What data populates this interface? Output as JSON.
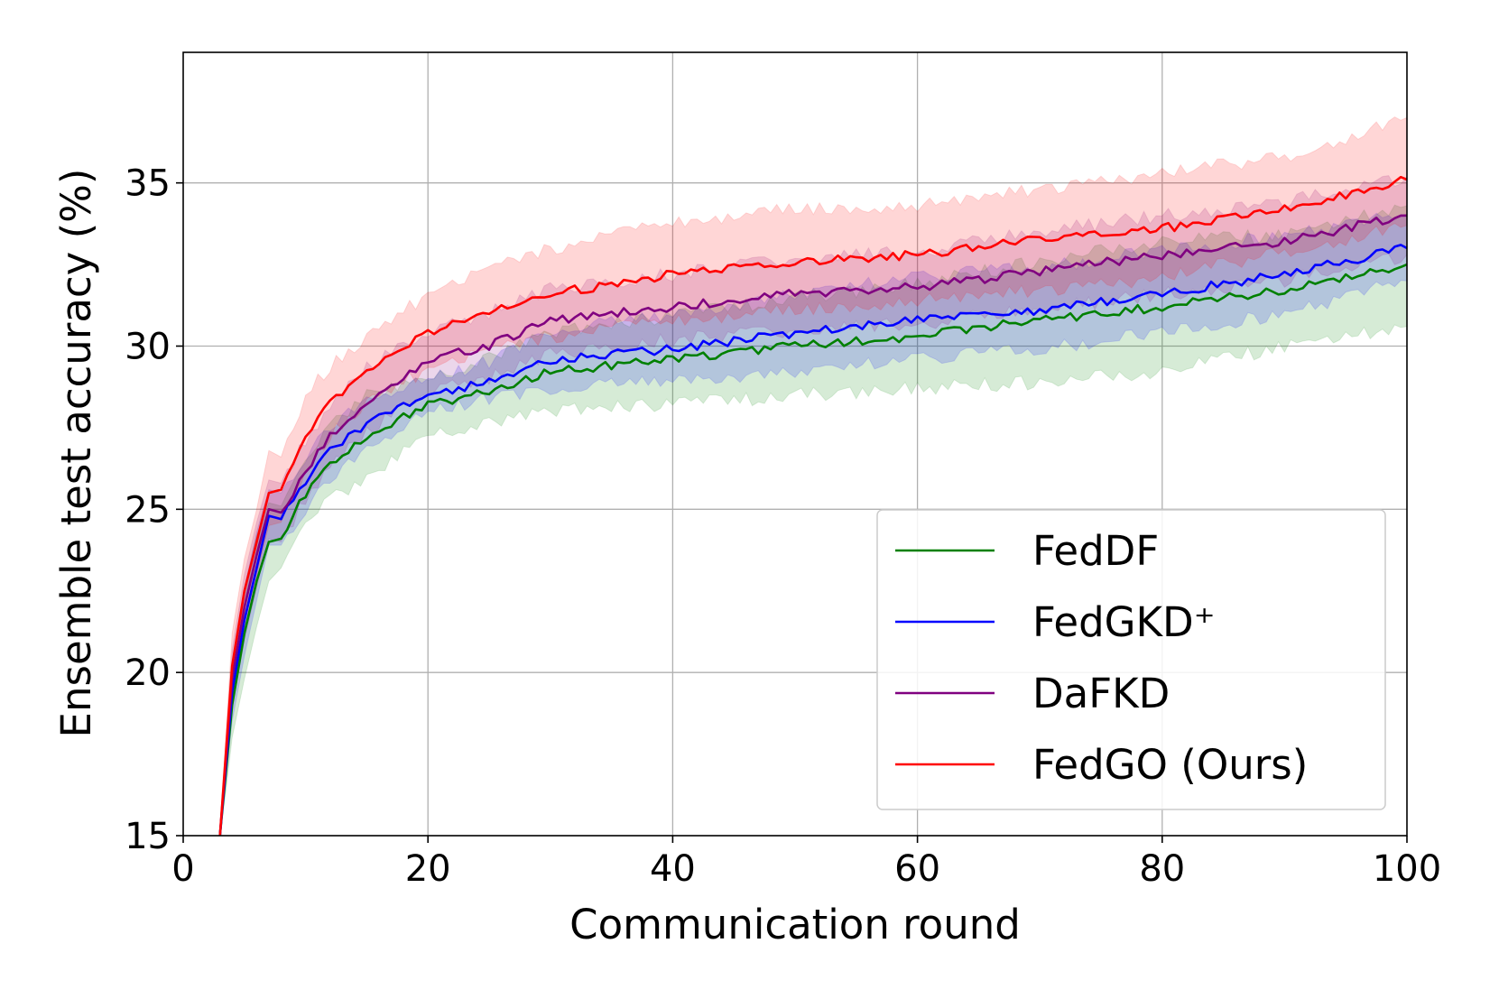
{
  "chart_data": {
    "type": "line",
    "title": "",
    "xlabel": "Communication round",
    "ylabel": "Ensemble test accuracy (%)",
    "xlim": [
      0,
      100
    ],
    "ylim": [
      15,
      39
    ],
    "xticks": [
      0,
      20,
      40,
      60,
      80,
      100
    ],
    "yticks": [
      15,
      20,
      25,
      30,
      35
    ],
    "grid": true,
    "legend_position": "bottom-right",
    "series": [
      {
        "name": "FedDF",
        "color": "#008000",
        "x": [
          3,
          4,
          5,
          6,
          7,
          8,
          10,
          12,
          15,
          20,
          25,
          30,
          40,
          50,
          60,
          70,
          80,
          90,
          100
        ],
        "values": [
          15.0,
          19.0,
          21.2,
          22.8,
          24.0,
          24.1,
          25.5,
          26.4,
          27.2,
          28.2,
          28.6,
          29.2,
          29.6,
          30.0,
          30.3,
          30.8,
          31.2,
          31.7,
          32.5
        ],
        "band_lower": [
          14.8,
          18.0,
          19.8,
          21.4,
          22.8,
          23.2,
          24.6,
          25.3,
          25.9,
          27.4,
          27.6,
          28.0,
          28.2,
          28.5,
          28.7,
          28.9,
          29.2,
          30.0,
          30.6
        ],
        "band_upper": [
          15.2,
          20.0,
          22.5,
          24.2,
          25.2,
          25.1,
          26.5,
          27.5,
          28.5,
          29.1,
          29.6,
          30.4,
          30.9,
          31.5,
          31.9,
          32.6,
          33.2,
          33.4,
          34.3
        ]
      },
      {
        "name": "FedGKD⁺",
        "color": "#0000ff",
        "x": [
          3,
          4,
          5,
          6,
          7,
          8,
          10,
          12,
          15,
          20,
          25,
          30,
          40,
          50,
          60,
          70,
          80,
          90,
          100
        ],
        "values": [
          15.0,
          19.4,
          21.6,
          23.2,
          24.8,
          24.7,
          25.8,
          26.8,
          27.6,
          28.5,
          28.9,
          29.6,
          29.9,
          30.4,
          30.8,
          31.1,
          31.6,
          32.2,
          33.0
        ],
        "band_lower": [
          14.8,
          18.5,
          20.5,
          22.2,
          23.9,
          23.9,
          25.0,
          26.0,
          26.9,
          28.0,
          28.4,
          28.7,
          28.9,
          29.2,
          29.6,
          29.9,
          30.4,
          31.0,
          32.0
        ],
        "band_upper": [
          15.2,
          20.3,
          22.6,
          24.3,
          25.6,
          25.5,
          26.6,
          27.6,
          28.4,
          29.0,
          29.5,
          30.5,
          30.9,
          31.6,
          32.1,
          32.4,
          32.9,
          33.4,
          34.0
        ]
      },
      {
        "name": "DaFKD",
        "color": "#800080",
        "x": [
          3,
          4,
          5,
          6,
          7,
          8,
          10,
          12,
          15,
          20,
          25,
          30,
          40,
          50,
          60,
          70,
          80,
          90,
          100
        ],
        "values": [
          15.0,
          19.8,
          22.0,
          23.6,
          25.0,
          24.9,
          26.2,
          27.3,
          28.3,
          29.6,
          30.0,
          30.8,
          31.2,
          31.6,
          31.8,
          32.3,
          32.8,
          33.2,
          34.0
        ],
        "band_lower": [
          14.8,
          18.9,
          21.0,
          22.6,
          24.1,
          24.0,
          25.3,
          26.4,
          27.3,
          28.7,
          29.0,
          29.8,
          30.2,
          30.5,
          30.7,
          31.1,
          31.6,
          32.0,
          32.8
        ],
        "band_upper": [
          15.2,
          20.7,
          23.0,
          24.6,
          25.9,
          25.8,
          27.1,
          28.2,
          29.3,
          30.5,
          31.0,
          31.8,
          32.2,
          32.7,
          32.9,
          33.5,
          34.0,
          34.4,
          35.2
        ]
      },
      {
        "name": "FedGO (Ours)",
        "color": "#ff0000",
        "x": [
          3,
          4,
          5,
          6,
          7,
          8,
          10,
          12,
          15,
          20,
          25,
          30,
          40,
          50,
          60,
          70,
          80,
          90,
          100
        ],
        "values": [
          15.0,
          20.2,
          22.5,
          24.0,
          25.5,
          25.6,
          27.2,
          28.3,
          29.3,
          30.4,
          31.0,
          31.6,
          32.2,
          32.6,
          32.8,
          33.3,
          33.6,
          34.2,
          35.1
        ],
        "band_lower": [
          14.8,
          19.2,
          21.5,
          23.0,
          24.5,
          24.6,
          26.2,
          27.3,
          28.3,
          29.3,
          29.9,
          30.3,
          30.8,
          31.1,
          31.4,
          31.7,
          32.1,
          32.9,
          33.7
        ],
        "band_upper": [
          15.2,
          21.2,
          23.5,
          25.0,
          26.8,
          26.6,
          28.5,
          29.4,
          30.3,
          31.6,
          32.4,
          33.0,
          33.8,
          34.2,
          34.3,
          34.8,
          35.3,
          35.8,
          37.0
        ]
      }
    ]
  }
}
